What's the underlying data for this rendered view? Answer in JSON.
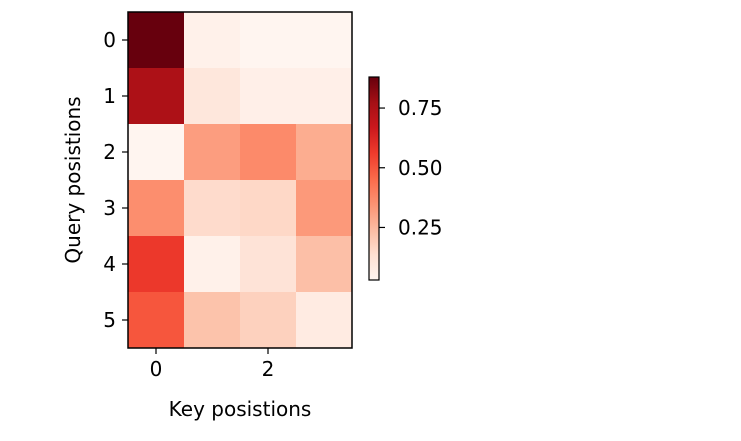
{
  "chart_data": {
    "type": "heatmap",
    "title": "",
    "xlabel": "Key posistions",
    "ylabel": "Query posistions",
    "rows": [
      0,
      1,
      2,
      3,
      4,
      5
    ],
    "cols": [
      0,
      1,
      2,
      3
    ],
    "x_tick_labels": [
      "0",
      "2"
    ],
    "y_tick_labels": [
      "0",
      "1",
      "2",
      "3",
      "4",
      "5"
    ],
    "values": [
      [
        0.88,
        0.05,
        0.03,
        0.03
      ],
      [
        0.75,
        0.1,
        0.06,
        0.06
      ],
      [
        0.03,
        0.32,
        0.37,
        0.28
      ],
      [
        0.36,
        0.15,
        0.16,
        0.33
      ],
      [
        0.57,
        0.05,
        0.12,
        0.23
      ],
      [
        0.5,
        0.22,
        0.18,
        0.08
      ]
    ],
    "colormap": "Reds",
    "colorbar": {
      "vmin": 0.03,
      "vmax": 0.88,
      "ticks": [
        0.25,
        0.5,
        0.75
      ],
      "tick_labels": [
        "0.25",
        "0.50",
        "0.75"
      ],
      "placement": "right"
    },
    "grid": false
  }
}
